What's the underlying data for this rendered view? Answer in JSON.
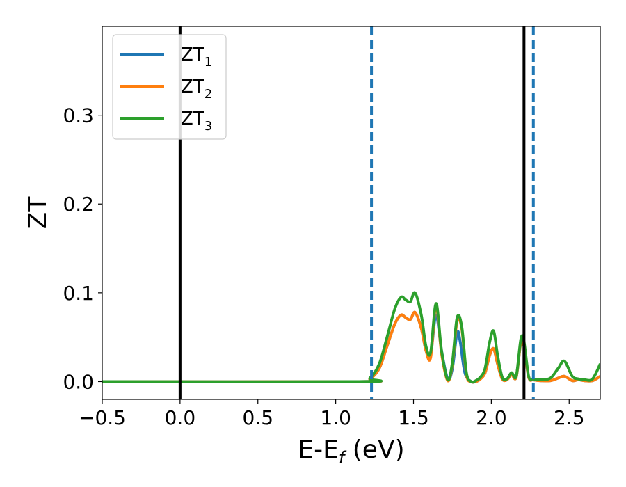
{
  "chart_data": {
    "type": "line",
    "xlabel": "E-E_f (eV)",
    "ylabel": "ZT",
    "xlim": [
      -0.5,
      2.7
    ],
    "ylim": [
      -0.02,
      0.4
    ],
    "x_ticks": [
      -0.5,
      0.0,
      0.5,
      1.0,
      1.5,
      2.0,
      2.5
    ],
    "x_tick_labels": [
      "−0.5",
      "0.0",
      "0.5",
      "1.0",
      "1.5",
      "2.0",
      "2.5"
    ],
    "y_ticks": [
      0.0,
      0.1,
      0.2,
      0.3
    ],
    "y_tick_labels": [
      "0.0",
      "0.1",
      "0.2",
      "0.3"
    ],
    "grid": false,
    "legend_position": "top-left",
    "series": [
      {
        "name": "ZT1",
        "name_main": "ZT",
        "name_sub": "1",
        "color": "#1f77b4",
        "x": [
          -0.5,
          1.15,
          1.22,
          1.28,
          1.33,
          1.38,
          1.42,
          1.45,
          1.48,
          1.51,
          1.55,
          1.58,
          1.61,
          1.645,
          1.68,
          1.72,
          1.75,
          1.78,
          1.8,
          1.83,
          1.87,
          1.9,
          1.93,
          1.96,
          1.99,
          2.015,
          2.04,
          2.07,
          2.1,
          2.13,
          2.16,
          2.19,
          2.21,
          2.24,
          2.27,
          2.32,
          2.38,
          2.43,
          2.47,
          2.52,
          2.56,
          2.6,
          2.65,
          2.7
        ],
        "y": [
          0.0,
          0.0,
          0.003,
          0.015,
          0.04,
          0.065,
          0.075,
          0.072,
          0.07,
          0.078,
          0.06,
          0.035,
          0.03,
          0.075,
          0.035,
          0.003,
          0.015,
          0.055,
          0.045,
          0.01,
          0.0,
          0.0,
          0.003,
          0.01,
          0.03,
          0.037,
          0.02,
          0.003,
          0.002,
          0.008,
          0.005,
          0.045,
          0.04,
          0.005,
          0.002,
          0.001,
          0.001,
          0.004,
          0.006,
          0.001,
          0.002,
          0.001,
          0.001,
          0.006
        ]
      },
      {
        "name": "ZT2",
        "name_main": "ZT",
        "name_sub": "2",
        "color": "#ff7f0e",
        "x": [
          -0.5,
          1.15,
          1.22,
          1.28,
          1.33,
          1.38,
          1.42,
          1.45,
          1.48,
          1.51,
          1.55,
          1.58,
          1.61,
          1.645,
          1.68,
          1.72,
          1.75,
          1.78,
          1.81,
          1.84,
          1.87,
          1.9,
          1.93,
          1.96,
          1.99,
          2.015,
          2.04,
          2.07,
          2.1,
          2.13,
          2.16,
          2.19,
          2.21,
          2.24,
          2.27,
          2.32,
          2.38,
          2.43,
          2.47,
          2.52,
          2.56,
          2.6,
          2.65,
          2.7
        ],
        "y": [
          0.0,
          0.0,
          0.003,
          0.015,
          0.04,
          0.065,
          0.075,
          0.072,
          0.07,
          0.078,
          0.06,
          0.035,
          0.027,
          0.085,
          0.032,
          0.001,
          0.02,
          0.068,
          0.06,
          0.008,
          0.0,
          0.0,
          0.003,
          0.01,
          0.03,
          0.037,
          0.02,
          0.003,
          0.002,
          0.008,
          0.005,
          0.045,
          0.04,
          0.005,
          0.002,
          0.001,
          0.001,
          0.004,
          0.006,
          0.001,
          0.002,
          0.001,
          0.001,
          0.006
        ]
      },
      {
        "name": "ZT3",
        "name_main": "ZT",
        "name_sub": "3",
        "color": "#2ca02c",
        "x": [
          -0.5,
          1.15,
          1.22,
          1.28,
          1.33,
          1.38,
          1.42,
          1.45,
          1.48,
          1.51,
          1.55,
          1.58,
          1.61,
          1.645,
          1.68,
          1.72,
          1.75,
          1.78,
          1.81,
          1.84,
          1.87,
          1.9,
          1.93,
          1.96,
          1.99,
          2.015,
          2.04,
          2.07,
          2.1,
          2.13,
          2.16,
          2.19,
          2.21,
          2.24,
          2.27,
          2.32,
          2.38,
          2.43,
          2.47,
          2.52,
          2.56,
          2.6,
          2.65,
          2.7
        ],
        "y": [
          0.0,
          0.0,
          0.004,
          0.02,
          0.05,
          0.082,
          0.095,
          0.092,
          0.09,
          0.1,
          0.075,
          0.04,
          0.033,
          0.088,
          0.035,
          0.002,
          0.022,
          0.072,
          0.062,
          0.01,
          0.0,
          0.001,
          0.005,
          0.015,
          0.045,
          0.057,
          0.03,
          0.005,
          0.003,
          0.01,
          0.006,
          0.048,
          0.045,
          0.006,
          0.003,
          0.002,
          0.004,
          0.015,
          0.023,
          0.006,
          0.003,
          0.002,
          0.003,
          0.02
        ]
      }
    ],
    "vertical_lines": [
      {
        "x": 0.0,
        "style": "solid",
        "color": "#000000"
      },
      {
        "x": 2.21,
        "style": "solid",
        "color": "#000000"
      },
      {
        "x": 1.23,
        "style": "dashed",
        "color": "#1f77b4"
      },
      {
        "x": 2.27,
        "style": "dashed",
        "color": "#1f77b4"
      }
    ]
  }
}
